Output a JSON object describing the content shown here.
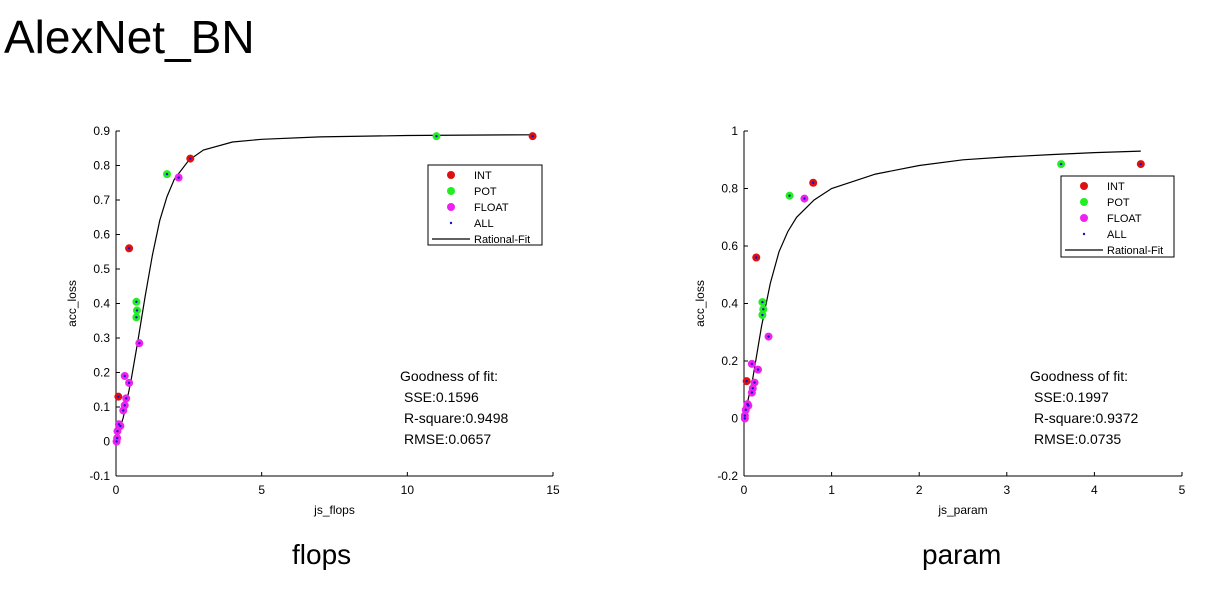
{
  "page_title": "AlexNet_BN",
  "chart_data": [
    {
      "type": "scatter",
      "caption": "flops",
      "xlabel": "js_flops",
      "ylabel": "acc_loss",
      "xlim": [
        0,
        15
      ],
      "ylim": [
        -0.1,
        0.9
      ],
      "xticks": [
        0,
        5,
        10,
        15
      ],
      "yticks": [
        -0.1,
        0,
        0.1,
        0.2,
        0.3,
        0.4,
        0.5,
        0.6,
        0.7,
        0.8,
        0.9
      ],
      "grid": false,
      "legend_position": "top-right",
      "colors": {
        "INT": "#dd1111",
        "POT": "#22ee22",
        "FLOAT": "#ee22ee",
        "ALL": "#1111cc",
        "Rational-Fit": "#000000"
      },
      "legend": [
        "INT",
        "POT",
        "FLOAT",
        "ALL",
        "Rational-Fit"
      ],
      "series": [
        {
          "name": "INT",
          "points": [
            [
              0.08,
              0.13
            ],
            [
              0.45,
              0.56
            ],
            [
              2.55,
              0.82
            ],
            [
              14.3,
              0.885
            ]
          ]
        },
        {
          "name": "POT",
          "points": [
            [
              0.7,
              0.405
            ],
            [
              0.72,
              0.38
            ],
            [
              0.7,
              0.36
            ],
            [
              1.75,
              0.775
            ],
            [
              11.0,
              0.885
            ]
          ]
        },
        {
          "name": "FLOAT",
          "points": [
            [
              0.02,
              0.0
            ],
            [
              0.04,
              0.01
            ],
            [
              0.05,
              0.03
            ],
            [
              0.1,
              0.05
            ],
            [
              0.15,
              0.045
            ],
            [
              0.25,
              0.09
            ],
            [
              0.3,
              0.105
            ],
            [
              0.35,
              0.125
            ],
            [
              0.3,
              0.19
            ],
            [
              0.45,
              0.17
            ],
            [
              0.8,
              0.285
            ],
            [
              2.15,
              0.765
            ]
          ]
        },
        {
          "name": "ALL",
          "points": [
            [
              0.02,
              0.0
            ],
            [
              0.04,
              0.01
            ],
            [
              0.05,
              0.03
            ],
            [
              0.1,
              0.05
            ],
            [
              0.15,
              0.045
            ],
            [
              0.25,
              0.09
            ],
            [
              0.3,
              0.105
            ],
            [
              0.35,
              0.125
            ],
            [
              0.3,
              0.19
            ],
            [
              0.45,
              0.17
            ],
            [
              0.8,
              0.285
            ],
            [
              2.15,
              0.765
            ],
            [
              0.08,
              0.13
            ],
            [
              0.45,
              0.56
            ],
            [
              2.55,
              0.82
            ],
            [
              14.3,
              0.885
            ],
            [
              0.7,
              0.405
            ],
            [
              0.72,
              0.38
            ],
            [
              0.7,
              0.36
            ],
            [
              1.75,
              0.775
            ],
            [
              11.0,
              0.885
            ]
          ]
        }
      ],
      "fit_curve": {
        "name": "Rational-Fit",
        "points": [
          [
            0,
            0
          ],
          [
            0.25,
            0.07
          ],
          [
            0.5,
            0.17
          ],
          [
            0.75,
            0.29
          ],
          [
            1.0,
            0.42
          ],
          [
            1.25,
            0.54
          ],
          [
            1.5,
            0.64
          ],
          [
            1.75,
            0.71
          ],
          [
            2.0,
            0.76
          ],
          [
            2.5,
            0.815
          ],
          [
            3.0,
            0.845
          ],
          [
            4.0,
            0.868
          ],
          [
            5.0,
            0.876
          ],
          [
            7.0,
            0.883
          ],
          [
            10.0,
            0.887
          ],
          [
            12.0,
            0.888
          ],
          [
            14.3,
            0.889
          ]
        ]
      },
      "goodness": {
        "title": "Goodness of fit:",
        "sse": "SSE:0.1596",
        "rsquare": "R-square:0.9498",
        "rmse": "RMSE:0.0657"
      }
    },
    {
      "type": "scatter",
      "caption": "param",
      "xlabel": "js_param",
      "ylabel": "acc_loss",
      "xlim": [
        0,
        5
      ],
      "ylim": [
        -0.2,
        1
      ],
      "xticks": [
        0,
        1,
        2,
        3,
        4,
        5
      ],
      "yticks": [
        -0.2,
        0,
        0.2,
        0.4,
        0.6,
        0.8,
        1
      ],
      "grid": false,
      "legend_position": "top-right",
      "colors": {
        "INT": "#dd1111",
        "POT": "#22ee22",
        "FLOAT": "#ee22ee",
        "ALL": "#1111cc",
        "Rational-Fit": "#000000"
      },
      "legend": [
        "INT",
        "POT",
        "FLOAT",
        "ALL",
        "Rational-Fit"
      ],
      "series": [
        {
          "name": "INT",
          "points": [
            [
              0.03,
              0.13
            ],
            [
              0.14,
              0.56
            ],
            [
              0.79,
              0.82
            ],
            [
              4.53,
              0.885
            ]
          ]
        },
        {
          "name": "POT",
          "points": [
            [
              0.21,
              0.405
            ],
            [
              0.22,
              0.38
            ],
            [
              0.21,
              0.36
            ],
            [
              0.52,
              0.775
            ],
            [
              3.62,
              0.885
            ]
          ]
        },
        {
          "name": "FLOAT",
          "points": [
            [
              0.01,
              0.0
            ],
            [
              0.01,
              0.01
            ],
            [
              0.02,
              0.03
            ],
            [
              0.04,
              0.05
            ],
            [
              0.05,
              0.045
            ],
            [
              0.09,
              0.09
            ],
            [
              0.1,
              0.105
            ],
            [
              0.12,
              0.125
            ],
            [
              0.09,
              0.19
            ],
            [
              0.16,
              0.17
            ],
            [
              0.28,
              0.285
            ],
            [
              0.69,
              0.765
            ]
          ]
        },
        {
          "name": "ALL",
          "points": [
            [
              0.01,
              0.0
            ],
            [
              0.01,
              0.01
            ],
            [
              0.02,
              0.03
            ],
            [
              0.04,
              0.05
            ],
            [
              0.05,
              0.045
            ],
            [
              0.09,
              0.09
            ],
            [
              0.1,
              0.105
            ],
            [
              0.12,
              0.125
            ],
            [
              0.09,
              0.19
            ],
            [
              0.16,
              0.17
            ],
            [
              0.28,
              0.285
            ],
            [
              0.69,
              0.765
            ],
            [
              0.03,
              0.13
            ],
            [
              0.14,
              0.56
            ],
            [
              0.79,
              0.82
            ],
            [
              4.53,
              0.885
            ],
            [
              0.21,
              0.405
            ],
            [
              0.22,
              0.38
            ],
            [
              0.21,
              0.36
            ],
            [
              0.52,
              0.775
            ],
            [
              3.62,
              0.885
            ]
          ]
        }
      ],
      "fit_curve": {
        "name": "Rational-Fit",
        "points": [
          [
            0,
            0
          ],
          [
            0.1,
            0.14
          ],
          [
            0.2,
            0.32
          ],
          [
            0.3,
            0.47
          ],
          [
            0.4,
            0.58
          ],
          [
            0.5,
            0.65
          ],
          [
            0.6,
            0.7
          ],
          [
            0.8,
            0.76
          ],
          [
            1.0,
            0.8
          ],
          [
            1.5,
            0.85
          ],
          [
            2.0,
            0.88
          ],
          [
            2.5,
            0.9
          ],
          [
            3.0,
            0.91
          ],
          [
            3.5,
            0.918
          ],
          [
            4.0,
            0.925
          ],
          [
            4.53,
            0.93
          ]
        ]
      },
      "goodness": {
        "title": "Goodness of fit:",
        "sse": "SSE:0.1997",
        "rsquare": "R-square:0.9372",
        "rmse": "RMSE:0.0735"
      }
    }
  ]
}
